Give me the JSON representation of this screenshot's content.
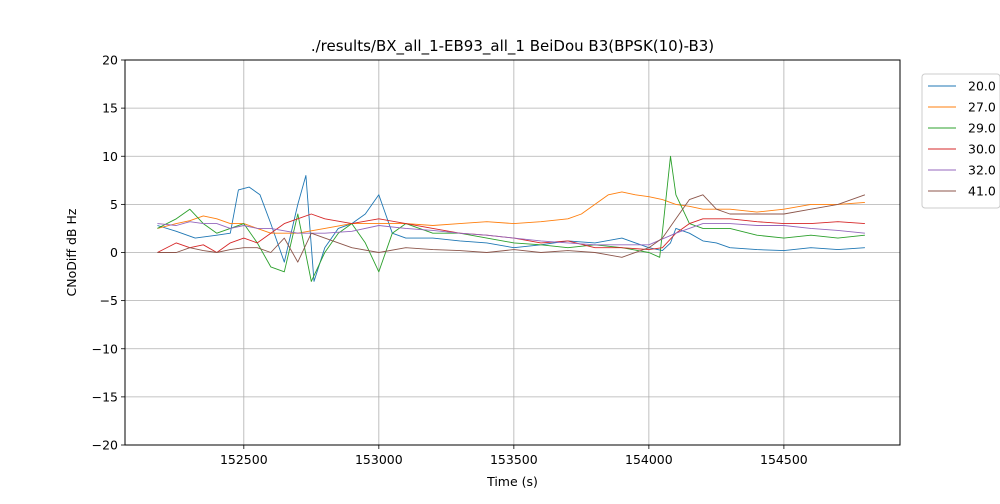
{
  "chart_data": {
    "type": "line",
    "title": "./results/BX_all_1-EB93_all_1 BeiDou B3(BPSK(10)-B3)",
    "xlabel": "Time (s)",
    "ylabel": "CNoDiff dB Hz",
    "xlim": [
      152060,
      154930
    ],
    "ylim": [
      -20,
      20
    ],
    "xticks": [
      152500,
      153000,
      153500,
      154000,
      154500
    ],
    "yticks": [
      -20,
      -15,
      -10,
      -5,
      0,
      5,
      10,
      15,
      20
    ],
    "grid": true,
    "legend_position": "outside-right",
    "series": [
      {
        "name": "20.0",
        "color": "#1f77b4",
        "x": [
          152180,
          152250,
          152320,
          152400,
          152450,
          152480,
          152520,
          152560,
          152600,
          152650,
          152700,
          152730,
          152760,
          152800,
          152850,
          152900,
          152950,
          153000,
          153050,
          153100,
          153200,
          153300,
          153400,
          153500,
          153600,
          153700,
          153800,
          153900,
          154000,
          154050,
          154080,
          154100,
          154150,
          154200,
          154250,
          154300,
          154400,
          154500,
          154600,
          154700,
          154800
        ],
        "y": [
          2.8,
          2.2,
          1.5,
          1.8,
          2.0,
          6.5,
          6.8,
          6.0,
          3.0,
          -1.0,
          5.0,
          8.0,
          -3.0,
          0.5,
          2.5,
          3.0,
          4.0,
          6.0,
          2.0,
          1.5,
          1.5,
          1.2,
          1.0,
          0.5,
          0.8,
          1.2,
          1.0,
          1.5,
          0.5,
          0.2,
          1.0,
          2.5,
          2.0,
          1.2,
          1.0,
          0.5,
          0.3,
          0.2,
          0.5,
          0.3,
          0.5
        ]
      },
      {
        "name": "27.0",
        "color": "#ff7f0e",
        "x": [
          152180,
          152250,
          152300,
          152350,
          152400,
          152450,
          152500,
          152550,
          152600,
          152700,
          152800,
          152900,
          153000,
          153100,
          153200,
          153300,
          153400,
          153500,
          153600,
          153700,
          153750,
          153800,
          153850,
          153900,
          153950,
          154000,
          154050,
          154100,
          154150,
          154200,
          154300,
          154400,
          154500,
          154600,
          154700,
          154800
        ],
        "y": [
          2.5,
          3.0,
          3.3,
          3.8,
          3.5,
          3.0,
          3.0,
          2.5,
          2.0,
          2.0,
          2.5,
          3.0,
          3.0,
          3.0,
          2.8,
          3.0,
          3.2,
          3.0,
          3.2,
          3.5,
          4.0,
          5.0,
          6.0,
          6.3,
          6.0,
          5.8,
          5.5,
          5.0,
          4.8,
          4.5,
          4.5,
          4.2,
          4.5,
          5.0,
          5.0,
          5.2
        ]
      },
      {
        "name": "29.0",
        "color": "#2ca02c",
        "x": [
          152180,
          152250,
          152300,
          152350,
          152400,
          152450,
          152500,
          152550,
          152600,
          152650,
          152700,
          152750,
          152800,
          152850,
          152900,
          152950,
          153000,
          153050,
          153100,
          153200,
          153300,
          153400,
          153500,
          153600,
          153700,
          153800,
          153900,
          154000,
          154040,
          154080,
          154100,
          154150,
          154200,
          154300,
          154400,
          154500,
          154600,
          154700,
          154800
        ],
        "y": [
          2.5,
          3.5,
          4.5,
          3.0,
          2.0,
          2.5,
          3.0,
          1.0,
          -1.5,
          -2.0,
          4.0,
          -3.0,
          0.0,
          2.0,
          3.0,
          1.0,
          -2.0,
          2.0,
          3.0,
          2.0,
          2.0,
          1.5,
          1.0,
          0.8,
          0.5,
          0.8,
          0.5,
          0.0,
          -0.5,
          10.0,
          6.0,
          3.0,
          2.5,
          2.5,
          1.8,
          1.5,
          1.8,
          1.5,
          1.8
        ]
      },
      {
        "name": "30.0",
        "color": "#d62728",
        "x": [
          152180,
          152250,
          152300,
          152350,
          152400,
          152450,
          152500,
          152550,
          152600,
          152650,
          152700,
          152750,
          152800,
          152900,
          153000,
          153100,
          153200,
          153300,
          153400,
          153500,
          153600,
          153700,
          153800,
          153900,
          154000,
          154050,
          154100,
          154150,
          154200,
          154300,
          154400,
          154500,
          154600,
          154700,
          154800
        ],
        "y": [
          0.0,
          1.0,
          0.5,
          0.8,
          0.0,
          1.0,
          1.5,
          1.0,
          2.0,
          3.0,
          3.5,
          4.0,
          3.5,
          3.0,
          3.5,
          3.0,
          2.5,
          2.0,
          1.8,
          1.5,
          1.0,
          1.2,
          0.5,
          0.5,
          0.3,
          0.5,
          2.0,
          3.0,
          3.5,
          3.5,
          3.2,
          3.0,
          3.0,
          3.2,
          3.0
        ]
      },
      {
        "name": "32.0",
        "color": "#9467bd",
        "x": [
          152180,
          152250,
          152300,
          152350,
          152400,
          152450,
          152500,
          152550,
          152600,
          152700,
          152800,
          152900,
          153000,
          153100,
          153200,
          153300,
          153400,
          153500,
          153600,
          153700,
          153800,
          153900,
          154000,
          154100,
          154200,
          154300,
          154400,
          154500,
          154600,
          154700,
          154800
        ],
        "y": [
          3.0,
          2.8,
          3.2,
          3.0,
          3.0,
          2.5,
          2.8,
          2.5,
          2.5,
          2.0,
          2.0,
          2.2,
          2.8,
          2.5,
          2.3,
          2.0,
          1.8,
          1.5,
          1.2,
          1.0,
          0.8,
          0.8,
          0.8,
          2.0,
          3.0,
          3.0,
          2.8,
          2.8,
          2.5,
          2.3,
          2.0
        ]
      },
      {
        "name": "41.0",
        "color": "#8c564b",
        "x": [
          152180,
          152250,
          152300,
          152350,
          152400,
          152450,
          152500,
          152550,
          152600,
          152650,
          152700,
          152750,
          152800,
          152900,
          153000,
          153100,
          153200,
          153300,
          153400,
          153500,
          153600,
          153700,
          153800,
          153900,
          154000,
          154050,
          154100,
          154150,
          154200,
          154250,
          154300,
          154400,
          154500,
          154600,
          154700,
          154800
        ],
        "y": [
          0.0,
          0.0,
          0.5,
          0.2,
          0.0,
          0.3,
          0.5,
          0.5,
          0.0,
          1.5,
          -1.0,
          2.0,
          1.5,
          0.5,
          0.0,
          0.5,
          0.3,
          0.2,
          0.0,
          0.3,
          0.0,
          0.2,
          0.0,
          -0.5,
          0.5,
          1.5,
          3.5,
          5.5,
          6.0,
          4.5,
          4.0,
          4.0,
          4.0,
          4.5,
          5.0,
          6.0
        ]
      }
    ]
  }
}
